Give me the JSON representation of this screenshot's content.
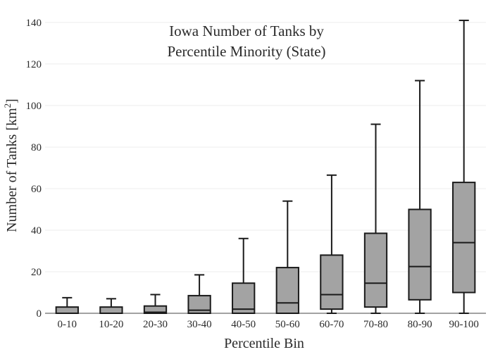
{
  "chart_data": {
    "type": "box",
    "title_lines": [
      "Iowa Number of Tanks by",
      "Percentile Minority (State)"
    ],
    "xlabel": "Percentile Bin",
    "ylabel": {
      "prefix": "Number of Tanks  [km",
      "superscript": "2",
      "suffix": "]"
    },
    "ylim": [
      0,
      142
    ],
    "yticks": [
      0,
      20,
      40,
      60,
      80,
      100,
      120,
      140
    ],
    "grid": true,
    "colors": {
      "box_fill": "#a3a3a3",
      "line": "#1a1a1a",
      "grid": "#ececec",
      "axis": "#444444"
    },
    "categories": [
      "0-10",
      "10-20",
      "20-30",
      "30-40",
      "40-50",
      "50-60",
      "60-70",
      "70-80",
      "80-90",
      "90-100"
    ],
    "boxes": [
      {
        "min": 0,
        "q1": 0,
        "median": 0,
        "q3": 3,
        "max": 7.5
      },
      {
        "min": 0,
        "q1": 0,
        "median": 0,
        "q3": 3,
        "max": 7
      },
      {
        "min": 0,
        "q1": 0,
        "median": 0.5,
        "q3": 3.5,
        "max": 9
      },
      {
        "min": 0,
        "q1": 0,
        "median": 1.5,
        "q3": 8.5,
        "max": 18.5
      },
      {
        "min": 0,
        "q1": 0,
        "median": 2,
        "q3": 14.5,
        "max": 36
      },
      {
        "min": 0,
        "q1": 0,
        "median": 5,
        "q3": 22,
        "max": 54
      },
      {
        "min": 0,
        "q1": 2,
        "median": 9,
        "q3": 28,
        "max": 66.5
      },
      {
        "min": 0,
        "q1": 3,
        "median": 14.5,
        "q3": 38.5,
        "max": 91
      },
      {
        "min": 0,
        "q1": 6.5,
        "median": 22.5,
        "q3": 50,
        "max": 112
      },
      {
        "min": 0,
        "q1": 10,
        "median": 34,
        "q3": 63,
        "max": 141
      }
    ]
  }
}
